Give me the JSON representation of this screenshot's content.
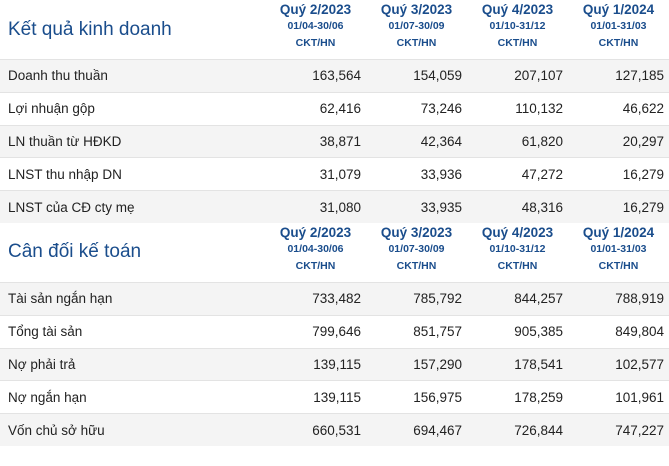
{
  "income": {
    "title": "Kết quả kinh doanh",
    "columns": [
      {
        "quarter": "Quý 2/2023",
        "range": "01/04-30/06",
        "unit": "CKT/HN"
      },
      {
        "quarter": "Quý 3/2023",
        "range": "01/07-30/09",
        "unit": "CKT/HN"
      },
      {
        "quarter": "Quý 4/2023",
        "range": "01/10-31/12",
        "unit": "CKT/HN"
      },
      {
        "quarter": "Quý 1/2024",
        "range": "01/01-31/03",
        "unit": "CKT/HN"
      }
    ],
    "rows": [
      {
        "label": "Doanh thu thuần",
        "values": [
          "163,564",
          "154,059",
          "207,107",
          "127,185"
        ]
      },
      {
        "label": "Lợi nhuận gộp",
        "values": [
          "62,416",
          "73,246",
          "110,132",
          "46,622"
        ]
      },
      {
        "label": "LN thuần từ HĐKD",
        "values": [
          "38,871",
          "42,364",
          "61,820",
          "20,297"
        ]
      },
      {
        "label": "LNST thu nhập DN",
        "values": [
          "31,079",
          "33,936",
          "47,272",
          "16,279"
        ]
      },
      {
        "label": "LNST của CĐ cty mẹ",
        "values": [
          "31,080",
          "33,935",
          "48,316",
          "16,279"
        ]
      }
    ]
  },
  "balance": {
    "title": "Cân đối kế toán",
    "columns": [
      {
        "quarter": "Quý 2/2023",
        "range": "01/04-30/06",
        "unit": "CKT/HN"
      },
      {
        "quarter": "Quý 3/2023",
        "range": "01/07-30/09",
        "unit": "CKT/HN"
      },
      {
        "quarter": "Quý 4/2023",
        "range": "01/10-31/12",
        "unit": "CKT/HN"
      },
      {
        "quarter": "Quý 1/2024",
        "range": "01/01-31/03",
        "unit": "CKT/HN"
      }
    ],
    "rows": [
      {
        "label": "Tài sản ngắn hạn",
        "values": [
          "733,482",
          "785,792",
          "844,257",
          "788,919"
        ]
      },
      {
        "label": "Tổng tài sản",
        "values": [
          "799,646",
          "851,757",
          "905,385",
          "849,804"
        ]
      },
      {
        "label": "Nợ phải trả",
        "values": [
          "139,115",
          "157,290",
          "178,541",
          "102,577"
        ]
      },
      {
        "label": "Nợ ngắn hạn",
        "values": [
          "139,115",
          "156,975",
          "178,259",
          "101,961"
        ]
      },
      {
        "label": "Vốn chủ sở hữu",
        "values": [
          "660,531",
          "694,467",
          "726,844",
          "747,227"
        ]
      }
    ]
  }
}
